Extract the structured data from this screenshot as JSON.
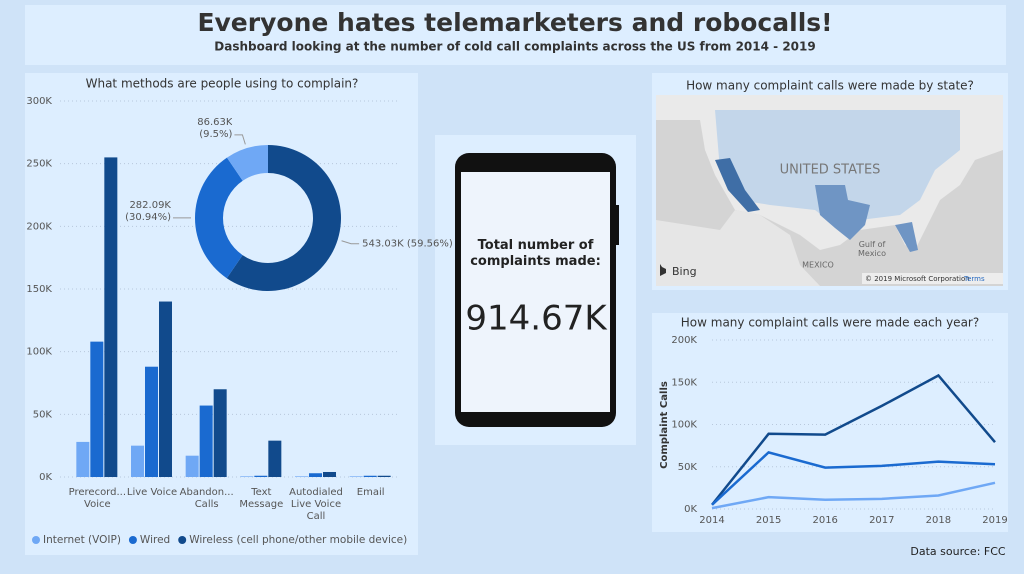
{
  "header": {
    "title": "Everyone hates telemarketers and robocalls!",
    "subtitle": "Dashboard looking at the number of cold call complaints across the US from 2014 - 2019"
  },
  "card": {
    "label": "Total number of complaints made:",
    "value": "914.67K"
  },
  "map": {
    "title": "How many complaint calls were made by state?",
    "country": "UNITED STATES",
    "neighbor": "MEXICO",
    "gulf": "Gulf of Mexico",
    "brand": "Bing",
    "copyright": "© 2019 Microsoft Corporation",
    "terms": "Terms"
  },
  "footer": "Data source: FCC",
  "chart_data": [
    {
      "type": "bar",
      "title": "What methods are people using to complain?",
      "categories": [
        "Prerecord... Voice",
        "Live Voice",
        "Abandon... Calls",
        "Text Message",
        "Autodialed Live Voice Call",
        "Email"
      ],
      "series": [
        {
          "name": "Internet (VOIP)",
          "color": "#6fa8f5",
          "values": [
            28000,
            25000,
            17000,
            500,
            500,
            500
          ]
        },
        {
          "name": "Wired",
          "color": "#1a6ad0",
          "values": [
            108000,
            88000,
            57000,
            1000,
            3000,
            1000
          ]
        },
        {
          "name": "Wireless (cell phone/other mobile device)",
          "color": "#114a8c",
          "values": [
            255000,
            140000,
            70000,
            29000,
            4000,
            1000
          ]
        }
      ],
      "ylim": [
        0,
        300000
      ],
      "yticks": [
        {
          "value": 0,
          "label": "0K"
        },
        {
          "value": 50000,
          "label": "50K"
        },
        {
          "value": 100000,
          "label": "100K"
        },
        {
          "value": 150000,
          "label": "150K"
        },
        {
          "value": 200000,
          "label": "200K"
        },
        {
          "value": 250000,
          "label": "250K"
        },
        {
          "value": 300000,
          "label": "300K"
        }
      ],
      "grid": true,
      "legend": "bottom"
    },
    {
      "type": "donut",
      "values": [
        543030,
        282090,
        86630
      ],
      "value_labels": [
        "543.03K (59.56%)",
        "282.09K (30.94%)",
        "86.63K (9.5%)"
      ],
      "colors": [
        "#114a8c",
        "#1a6ad0",
        "#6fa8f5"
      ]
    },
    {
      "type": "line",
      "title": "How many complaint calls were made each year?",
      "ylabel": "Complaint Calls",
      "categories": [
        "2014",
        "2015",
        "2016",
        "2017",
        "2018",
        "2019"
      ],
      "series": [
        {
          "color": "#114a8c",
          "values": [
            5000,
            89000,
            88000,
            122000,
            158000,
            79000
          ]
        },
        {
          "color": "#1a6ad0",
          "values": [
            5000,
            67000,
            49000,
            51000,
            56000,
            53000
          ]
        },
        {
          "color": "#6fa8f5",
          "values": [
            1000,
            14000,
            11000,
            12000,
            16000,
            31000
          ]
        }
      ],
      "ylim": [
        0,
        200000
      ],
      "yticks": [
        {
          "value": 0,
          "label": "0K"
        },
        {
          "value": 50000,
          "label": "50K"
        },
        {
          "value": 100000,
          "label": "100K"
        },
        {
          "value": 150000,
          "label": "150K"
        },
        {
          "value": 200000,
          "label": "200K"
        }
      ],
      "grid": true
    }
  ]
}
